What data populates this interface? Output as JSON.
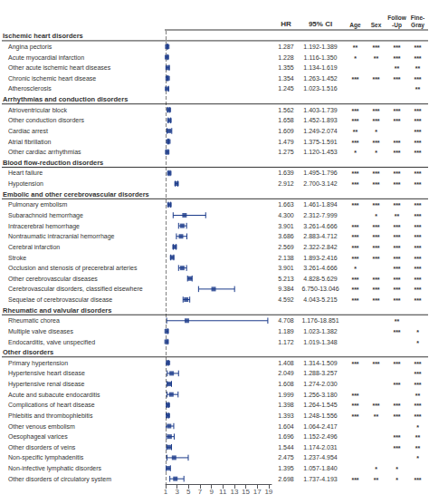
{
  "chart_data": {
    "type": "forest",
    "value_header": "HR",
    "ci_header": "95% CI",
    "star_columns": [
      "Age",
      "Sex",
      "Follow\n-Up",
      "Fine-\nGray"
    ],
    "color": "#1a3a8a",
    "xlim": [
      1,
      19.5
    ],
    "xticks": [
      1,
      3,
      5,
      7,
      9,
      11,
      13,
      15,
      17,
      19
    ],
    "reference_line": 1,
    "grid": false,
    "groups": [
      {
        "name": "Ischemic heart disorders",
        "categories": [
          "Angina pectoris",
          "Acute myocardial infarction",
          "Other acute ischemic heart diseases",
          "Chronic ischemic heart disease",
          "Atherosclerosis"
        ],
        "values": [
          1.287,
          1.228,
          1.355,
          1.354,
          1.245
        ],
        "value_labels": [
          "1.287",
          "1.228",
          "1.355",
          "1.354",
          "1.245"
        ],
        "lo": [
          1.192,
          1.116,
          1.134,
          1.263,
          1.023
        ],
        "hi": [
          1.389,
          1.35,
          1.619,
          1.452,
          1.516
        ],
        "ci_labels": [
          "1.192-1.389",
          "1.116-1.350",
          "1.134-1.619",
          "1.263-1.452",
          "1.023-1.516"
        ],
        "stars": [
          [
            "**",
            "***",
            "***",
            "***"
          ],
          [
            "*",
            "**",
            "***",
            "***"
          ],
          [
            null,
            null,
            "**",
            "**"
          ],
          [
            "***",
            "***",
            "***",
            "***"
          ],
          [
            null,
            null,
            null,
            "**"
          ]
        ]
      },
      {
        "name": "Arrhythmias and conduction disorders",
        "categories": [
          "Atrioventricular block",
          "Other conduction disorders",
          "Cardiac arrest",
          "Atrial fibrillation",
          "Other cardiac arrhythmias"
        ],
        "values": [
          1.562,
          1.658,
          1.609,
          1.479,
          1.275
        ],
        "value_labels": [
          "1.562",
          "1.658",
          "1.609",
          "1.479",
          "1.275"
        ],
        "lo": [
          1.403,
          1.452,
          1.249,
          1.375,
          1.12
        ],
        "hi": [
          1.739,
          1.893,
          2.074,
          1.591,
          1.453
        ],
        "ci_labels": [
          "1.403-1.739",
          "1.452-1.893",
          "1.249-2.074",
          "1.375-1.591",
          "1.120-1.453"
        ],
        "stars": [
          [
            "***",
            "***",
            "***",
            "***"
          ],
          [
            "***",
            "***",
            "***",
            "***"
          ],
          [
            "**",
            "*",
            null,
            "***"
          ],
          [
            "***",
            "***",
            "***",
            "***"
          ],
          [
            "*",
            "*",
            "***",
            "***"
          ]
        ]
      },
      {
        "name": "Blood flow-reduction disorders",
        "categories": [
          "Heart failure",
          "Hypotension"
        ],
        "values": [
          1.639,
          2.912
        ],
        "value_labels": [
          "1.639",
          "2.912"
        ],
        "lo": [
          1.495,
          2.7
        ],
        "hi": [
          1.796,
          3.142
        ],
        "ci_labels": [
          "1.495-1.796",
          "2.700-3.142"
        ],
        "stars": [
          [
            "***",
            "***",
            "***",
            "***"
          ],
          [
            "***",
            "***",
            "***",
            "***"
          ]
        ]
      },
      {
        "name": "Embolic and other cerebrovascular disorders",
        "categories": [
          "Pulmonary embolism",
          "Subarachnoid hemorrhage",
          "Intracerebral hemorrhage",
          "Nontraumatic intracranial hemorrhage",
          "Cerebral infarction",
          "Stroke",
          "Occlusion and stenosis of precerebral arteries",
          "Other cerebrovascular diseases",
          "Cerebrovascular disorders, classified elsewhere",
          "Sequelae of cerebrovascular disease"
        ],
        "values": [
          1.663,
          4.3,
          3.901,
          3.686,
          2.569,
          2.138,
          3.901,
          5.213,
          9.384,
          4.592
        ],
        "value_labels": [
          "1.663",
          "4.300",
          "3.901",
          "3.686",
          "2.569",
          "2.138",
          "3.901",
          "5.213",
          "9.384",
          "4.592"
        ],
        "lo": [
          1.461,
          2.312,
          3.261,
          2.883,
          2.322,
          1.893,
          3.261,
          4.828,
          6.75,
          4.043
        ],
        "hi": [
          1.894,
          7.999,
          4.666,
          4.712,
          2.842,
          2.416,
          4.666,
          5.629,
          13.046,
          5.215
        ],
        "ci_labels": [
          "1.461-1.894",
          "2.312-7.999",
          "3.261-4.666",
          "2.883-4.712",
          "2.322-2.842",
          "1.893-2.416",
          "3.261-4.666",
          "4.828-5.629",
          "6.750-13.046",
          "4.043-5.215"
        ],
        "stars": [
          [
            "***",
            "***",
            "***",
            "***"
          ],
          [
            null,
            "*",
            "**",
            "***"
          ],
          [
            "***",
            "***",
            "***",
            "***"
          ],
          [
            "***",
            "***",
            "***",
            "***"
          ],
          [
            "***",
            "***",
            "***",
            "***"
          ],
          [
            "***",
            "***",
            "***",
            "***"
          ],
          [
            "*",
            null,
            "***",
            "***"
          ],
          [
            "***",
            "***",
            "***",
            "***"
          ],
          [
            "***",
            "***",
            "***",
            "***"
          ],
          [
            "***",
            "***",
            "***",
            "***"
          ]
        ]
      },
      {
        "name": "Rheumatic and valvular disorders",
        "categories": [
          "Rheumatic chorea",
          "Multiple valve diseases",
          "Endocarditis, valve unspecified"
        ],
        "values": [
          4.708,
          1.189,
          1.172
        ],
        "value_labels": [
          "4.708",
          "1.189",
          "1.172"
        ],
        "lo": [
          1.176,
          1.023,
          1.019
        ],
        "hi": [
          18.851,
          1.382,
          1.348
        ],
        "ci_labels": [
          "1.176-18.851",
          "1.023-1.382",
          "1.019-1.348"
        ],
        "stars": [
          [
            null,
            null,
            "**",
            null
          ],
          [
            null,
            null,
            "***",
            "*"
          ],
          [
            null,
            null,
            null,
            "*"
          ]
        ]
      },
      {
        "name": "Other disorders",
        "categories": [
          "Primary hypertension",
          "Hypertensive heart disease",
          "Hypertensive renal disease",
          "Acute and subacute endocarditis",
          "Complications of heart disease",
          "Phlebitis and thrombophlebitis",
          "Other venous embolism",
          "Oesophageal varices",
          "Other disorders of veins",
          "Non-specific lymphadenitis",
          "Non-infective lymphatic disorders",
          "Other disorders of circulatory system"
        ],
        "values": [
          1.408,
          2.049,
          1.608,
          1.999,
          1.398,
          1.393,
          1.604,
          1.696,
          1.544,
          2.475,
          1.395,
          2.698
        ],
        "value_labels": [
          "1.408",
          "2.049",
          "1.608",
          "1.999",
          "1.398",
          "1.393",
          "1.604",
          "1.696",
          "1.544",
          "2.475",
          "1.395",
          "2.698"
        ],
        "lo": [
          1.314,
          1.288,
          1.274,
          1.256,
          1.264,
          1.248,
          1.064,
          1.152,
          1.174,
          1.237,
          1.057,
          1.737
        ],
        "hi": [
          1.509,
          3.257,
          2.03,
          3.18,
          1.545,
          1.556,
          2.417,
          2.496,
          2.031,
          4.954,
          1.84,
          4.193
        ],
        "ci_labels": [
          "1.314-1.509",
          "1.288-3.257",
          "1.274-2.030",
          "1.256-3.180",
          "1.264-1.545",
          "1.248-1.556",
          "1.064-2.417",
          "1.152-2.496",
          "1.174-2.031",
          "1.237-4.954",
          "1.057-1.840",
          "1.737-4.193"
        ],
        "stars": [
          [
            "***",
            "***",
            "***",
            "***"
          ],
          [
            null,
            null,
            null,
            "***"
          ],
          [
            null,
            null,
            "***",
            "***"
          ],
          [
            "***",
            null,
            null,
            "**"
          ],
          [
            "***",
            "***",
            "***",
            "***"
          ],
          [
            "***",
            "**",
            "***",
            "***"
          ],
          [
            null,
            null,
            null,
            "*"
          ],
          [
            null,
            null,
            "***",
            "**"
          ],
          [
            null,
            null,
            "***",
            "**"
          ],
          [
            null,
            null,
            null,
            "*"
          ],
          [
            null,
            "*",
            "*",
            null
          ],
          [
            "***",
            "**",
            "*",
            "***"
          ]
        ]
      }
    ]
  }
}
